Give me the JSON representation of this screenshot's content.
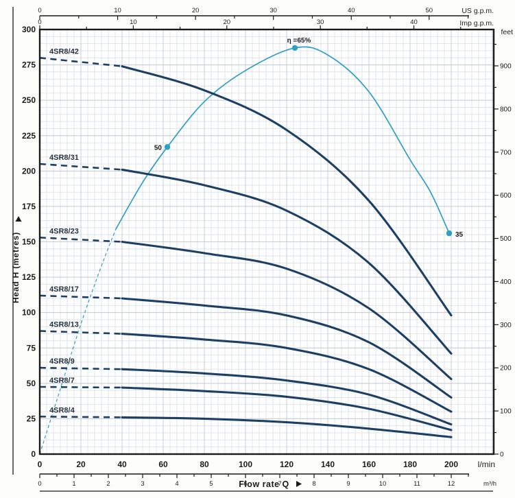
{
  "chart_data": {
    "type": "line",
    "xlabel": "Flow rate Q",
    "ylabel": "Head H (metres)",
    "units": {
      "x_primary": "l/min",
      "x_secondary": "m³/h",
      "x_top_outer": "US g.p.m.",
      "x_top_inner": "Imp g.p.m.",
      "y_left": "Head H (metres)",
      "y_right": "feet"
    },
    "axis_ranges": {
      "flow_lmin": [
        0,
        200
      ],
      "head_metres": [
        0,
        300
      ],
      "head_feet": [
        0,
        950
      ],
      "usgpm": [
        0,
        55
      ],
      "impgpm": [
        0,
        45
      ],
      "m3h": [
        0,
        12.5
      ]
    },
    "ticks": {
      "lmin": [
        0,
        20,
        40,
        60,
        80,
        100,
        120,
        140,
        160,
        180,
        200
      ],
      "m3h": [
        0,
        1,
        2,
        3,
        4,
        5,
        6,
        7,
        8,
        9,
        10,
        11,
        12
      ],
      "usgpm": [
        0,
        10,
        20,
        30,
        40,
        50
      ],
      "impgpm": [
        0,
        10,
        20,
        30,
        40
      ],
      "metres": [
        300,
        275,
        250,
        225,
        200,
        175,
        150,
        125,
        100,
        75,
        50,
        25,
        0
      ],
      "feet": [
        900,
        800,
        700,
        600,
        500,
        400,
        300,
        200,
        100,
        0
      ]
    },
    "grid": "minor-and-major",
    "q_lmin": [
      0,
      40,
      80,
      120,
      160,
      200
    ],
    "dashed_until_q": 40,
    "series": [
      {
        "name": "4SR8/42",
        "head_m": [
          280,
          274,
          257,
          229,
          179,
          98
        ]
      },
      {
        "name": "4SR8/31",
        "head_m": [
          205,
          201,
          190,
          172,
          135,
          71
        ]
      },
      {
        "name": "4SR8/23",
        "head_m": [
          153,
          150,
          142,
          131,
          103,
          53
        ]
      },
      {
        "name": "4SR8/17",
        "head_m": [
          112,
          110,
          105,
          98,
          79,
          40
        ]
      },
      {
        "name": "4SR8/13",
        "head_m": [
          87,
          85,
          81,
          75,
          60,
          30
        ]
      },
      {
        "name": "4SR8/9",
        "head_m": [
          61,
          60,
          57,
          52,
          42,
          21
        ]
      },
      {
        "name": "4SR8/7",
        "head_m": [
          47.5,
          47,
          44.5,
          40.5,
          32,
          17
        ]
      },
      {
        "name": "4SR8/4",
        "head_m": [
          26.5,
          26,
          25,
          22.5,
          18,
          12
        ]
      }
    ],
    "efficiency_curve": {
      "dashed_points": [
        [
          0,
          0
        ],
        [
          10,
          46
        ],
        [
          20,
          92
        ],
        [
          30,
          133
        ],
        [
          37,
          159
        ]
      ],
      "solid_points": [
        [
          37,
          159
        ],
        [
          50,
          192
        ],
        [
          62,
          217
        ],
        [
          80,
          249
        ],
        [
          100,
          271
        ],
        [
          124,
          287
        ],
        [
          140,
          282
        ],
        [
          160,
          256
        ],
        [
          180,
          208
        ],
        [
          190,
          185
        ],
        [
          199,
          156
        ]
      ],
      "markers": [
        {
          "q": 62,
          "h_eq": 217,
          "label": "50",
          "placement": "left"
        },
        {
          "q": 124,
          "h_eq": 287,
          "label": "η =65%",
          "placement": "top"
        },
        {
          "q": 199,
          "h_eq": 156,
          "label": "35",
          "placement": "right"
        }
      ]
    },
    "colors": {
      "pump_curve": "#1c3f63",
      "efficiency": "#2f9fc2",
      "grid_minor": "#dfe3e8",
      "grid_major": "#c7cdd5",
      "axis": "#1a1a1a",
      "text": "#1b1b1b",
      "curve_label": "#263440",
      "plot_bg": "#ffffff"
    }
  }
}
